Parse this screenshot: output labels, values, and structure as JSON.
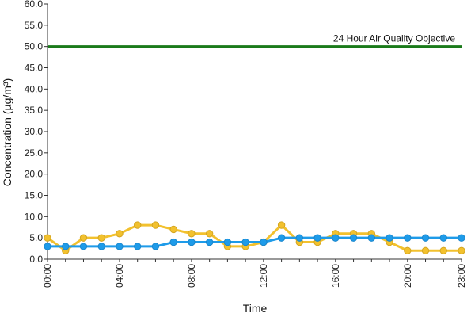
{
  "chart_data": {
    "type": "line",
    "xlabel": "Time",
    "ylabel": "Concentration (µg/m³)",
    "x": [
      0,
      1,
      2,
      3,
      4,
      5,
      6,
      7,
      8,
      9,
      10,
      11,
      12,
      13,
      14,
      15,
      16,
      17,
      18,
      19,
      20,
      21,
      22,
      23
    ],
    "x_tick_labels": [
      {
        "x": 0,
        "label": "00:00"
      },
      {
        "x": 4,
        "label": "04:00"
      },
      {
        "x": 8,
        "label": "08:00"
      },
      {
        "x": 12,
        "label": "12:00"
      },
      {
        "x": 16,
        "label": "16:00"
      },
      {
        "x": 20,
        "label": "20:00"
      },
      {
        "x": 23,
        "label": "23:00"
      }
    ],
    "ylim": [
      0,
      60
    ],
    "y_ticks": [
      "0.0",
      "5.0",
      "10.0",
      "15.0",
      "20.0",
      "25.0",
      "30.0",
      "35.0",
      "40.0",
      "45.0",
      "50.0",
      "55.0",
      "60.0"
    ],
    "y_tick_values": [
      0,
      5,
      10,
      15,
      20,
      25,
      30,
      35,
      40,
      45,
      50,
      55,
      60
    ],
    "grid": false,
    "series": [
      {
        "color": "#f2c12e",
        "edge": "#d4a520",
        "values": [
          5,
          2,
          5,
          5,
          6,
          8,
          8,
          7,
          6,
          6,
          3,
          3,
          4,
          8,
          4,
          4,
          6,
          6,
          6,
          4,
          2,
          2,
          2,
          2
        ]
      },
      {
        "color": "#1e9be9",
        "edge": "#1a86cc",
        "values": [
          3,
          3,
          3,
          3,
          3,
          3,
          3,
          4,
          4,
          4,
          4,
          4,
          4,
          5,
          5,
          5,
          5,
          5,
          5,
          5,
          5,
          5,
          5,
          5
        ]
      }
    ],
    "objective": {
      "value": 50,
      "label": "24 Hour Air Quality Objective",
      "color": "#1a7a1a"
    }
  }
}
